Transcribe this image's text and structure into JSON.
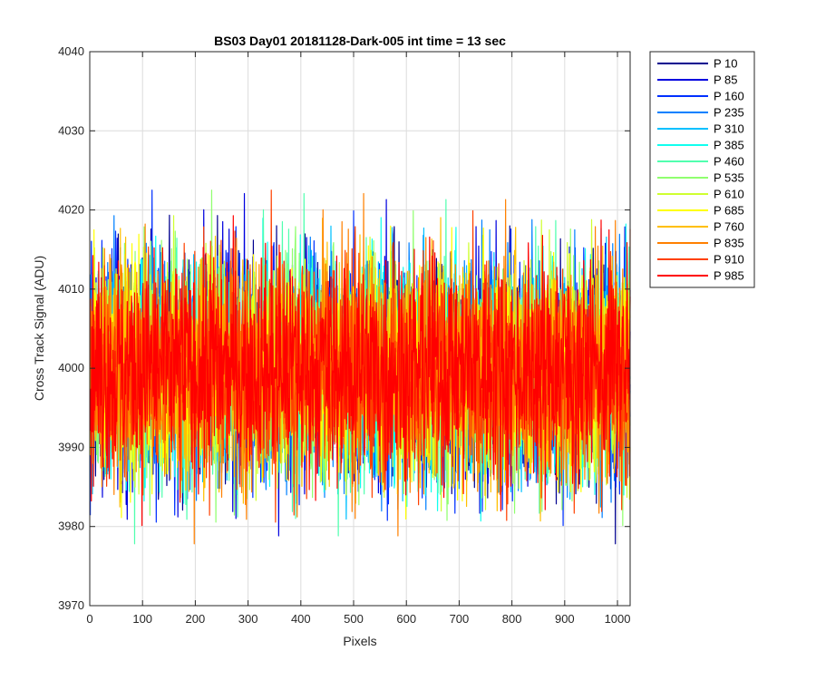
{
  "chart_data": {
    "type": "line",
    "title": "BS03 Day01 20181128-Dark-005 int time = 13 sec",
    "xlabel": "Pixels",
    "ylabel": "Cross Track Signal (ADU)",
    "xlim": [
      0,
      1024
    ],
    "ylim": [
      3970,
      4040
    ],
    "xticks": [
      0,
      100,
      200,
      300,
      400,
      500,
      600,
      700,
      800,
      900,
      1000
    ],
    "yticks": [
      3970,
      3980,
      3990,
      4000,
      4010,
      4020,
      4030,
      4040
    ],
    "grid": true,
    "legend_position": "outside-top-right",
    "x_range": [
      1,
      1024
    ],
    "noise_center": 4000,
    "noise_sigma": 7,
    "series": [
      {
        "name": "P 10",
        "color": "#00008f"
      },
      {
        "name": "P 85",
        "color": "#0000df"
      },
      {
        "name": "P 160",
        "color": "#0030ff"
      },
      {
        "name": "P 235",
        "color": "#0080ff"
      },
      {
        "name": "P 310",
        "color": "#00c0ff"
      },
      {
        "name": "P 385",
        "color": "#10ffef"
      },
      {
        "name": "P 460",
        "color": "#50ffaf"
      },
      {
        "name": "P 535",
        "color": "#90ff6f"
      },
      {
        "name": "P 610",
        "color": "#cfff30"
      },
      {
        "name": "P 685",
        "color": "#ffff00"
      },
      {
        "name": "P 760",
        "color": "#ffbf00"
      },
      {
        "name": "P 835",
        "color": "#ff8000"
      },
      {
        "name": "P 910",
        "color": "#ff4000"
      },
      {
        "name": "P 985",
        "color": "#ff0000"
      }
    ]
  }
}
